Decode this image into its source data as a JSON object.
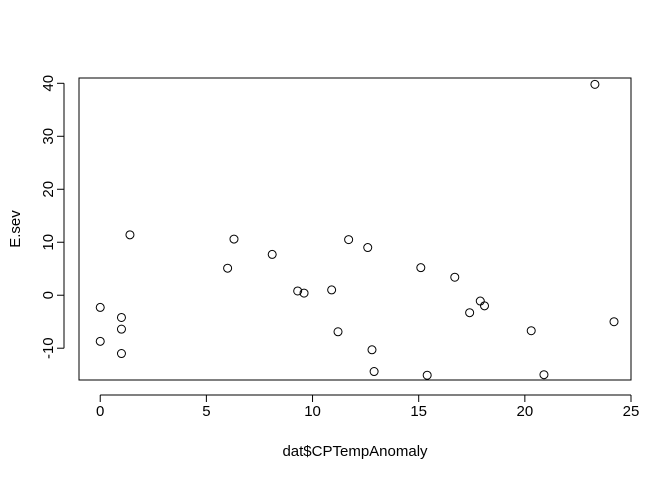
{
  "chart_data": {
    "type": "scatter",
    "title": "",
    "xlabel": "dat$CPTempAnomaly",
    "ylabel": "E.sev",
    "xlim": [
      -1,
      25
    ],
    "ylim": [
      -16,
      41
    ],
    "xticks": [
      0,
      5,
      10,
      15,
      20,
      25
    ],
    "yticks": [
      -10,
      0,
      10,
      20,
      30,
      40
    ],
    "xtick_labels": [
      "0",
      "5",
      "10",
      "15",
      "20",
      "25"
    ],
    "ytick_labels": [
      "-10",
      "0",
      "10",
      "20",
      "30",
      "40"
    ],
    "grid": false,
    "legend": "none",
    "marker": "open-circle",
    "points": [
      {
        "x": 0.0,
        "y": -2.3
      },
      {
        "x": 0.0,
        "y": -8.7
      },
      {
        "x": 1.0,
        "y": -4.2
      },
      {
        "x": 1.0,
        "y": -6.4
      },
      {
        "x": 1.0,
        "y": -11.0
      },
      {
        "x": 1.4,
        "y": 11.4
      },
      {
        "x": 6.0,
        "y": 5.1
      },
      {
        "x": 6.3,
        "y": 10.6
      },
      {
        "x": 8.1,
        "y": 7.7
      },
      {
        "x": 9.3,
        "y": 0.8
      },
      {
        "x": 9.6,
        "y": 0.4
      },
      {
        "x": 10.9,
        "y": 1.0
      },
      {
        "x": 11.2,
        "y": -6.9
      },
      {
        "x": 11.7,
        "y": 10.5
      },
      {
        "x": 12.6,
        "y": 9.0
      },
      {
        "x": 12.8,
        "y": -10.3
      },
      {
        "x": 12.9,
        "y": -14.4
      },
      {
        "x": 15.1,
        "y": 5.2
      },
      {
        "x": 15.4,
        "y": -15.1
      },
      {
        "x": 16.7,
        "y": 3.4
      },
      {
        "x": 17.4,
        "y": -3.3
      },
      {
        "x": 17.9,
        "y": -1.1
      },
      {
        "x": 18.1,
        "y": -2.0
      },
      {
        "x": 20.3,
        "y": -6.7
      },
      {
        "x": 20.9,
        "y": -15.0
      },
      {
        "x": 23.3,
        "y": 39.8
      },
      {
        "x": 24.2,
        "y": -5.0
      }
    ]
  }
}
